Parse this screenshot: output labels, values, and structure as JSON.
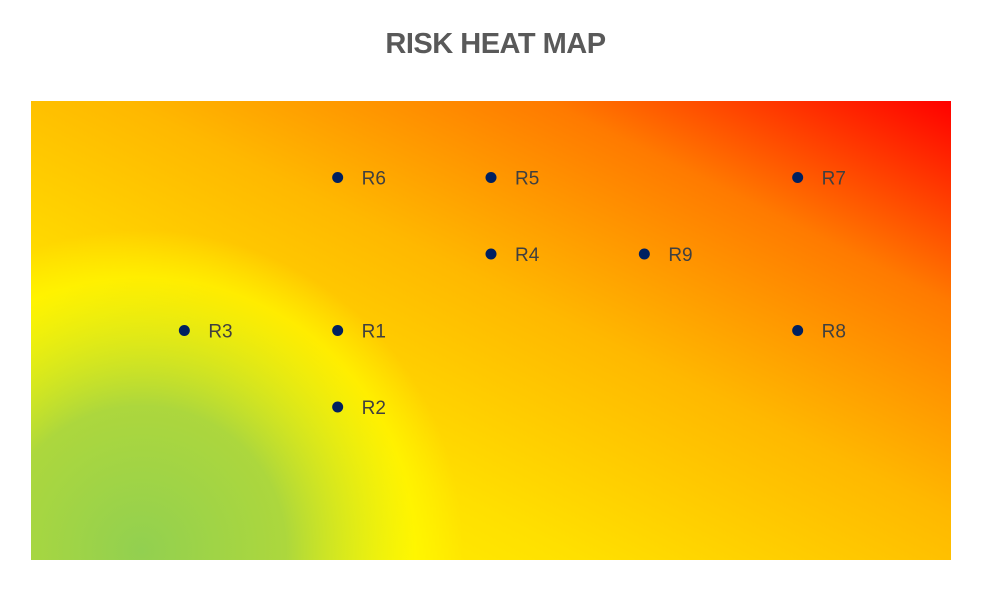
{
  "chart_data": {
    "type": "scatter",
    "title": "RISK HEAT MAP",
    "xlabel": "",
    "ylabel": "",
    "xlim": [
      0,
      6
    ],
    "ylim": [
      0,
      6
    ],
    "grid": false,
    "background": "heat-gradient green (low) to yellow to orange to red (high)",
    "gradient_colors": {
      "green": "#92d050",
      "yellow": "#ffff00",
      "orange": "#ffc000",
      "dark_orange": "#ff8c00",
      "red": "#ff0000"
    },
    "marker_color": "#002060",
    "points": [
      {
        "label": "R1",
        "x": 2,
        "y": 3
      },
      {
        "label": "R2",
        "x": 2,
        "y": 2
      },
      {
        "label": "R3",
        "x": 1,
        "y": 3
      },
      {
        "label": "R4",
        "x": 3,
        "y": 4
      },
      {
        "label": "R5",
        "x": 3,
        "y": 5
      },
      {
        "label": "R6",
        "x": 2,
        "y": 5
      },
      {
        "label": "R7",
        "x": 5,
        "y": 5
      },
      {
        "label": "R8",
        "x": 5,
        "y": 3
      },
      {
        "label": "R9",
        "x": 4,
        "y": 4
      }
    ]
  }
}
